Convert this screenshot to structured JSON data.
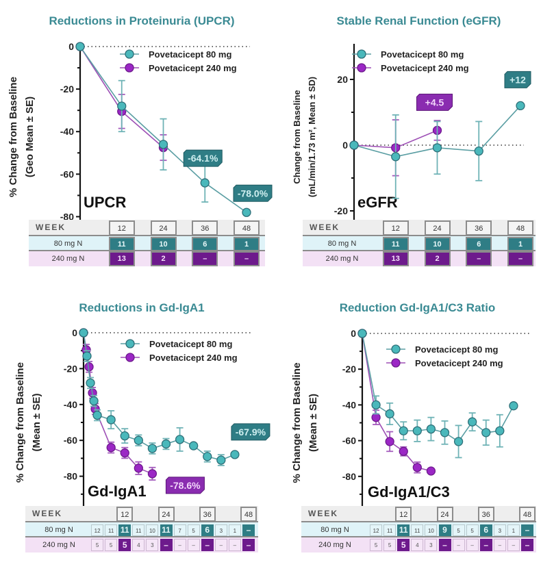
{
  "colors": {
    "teal": "#4ab8bb",
    "teal_dark": "#2e6f78",
    "teal_badge": "#2f7d85",
    "purple": "#9b27c5",
    "purple_dark": "#6d1a8c",
    "purple_badge": "#8a2cb0",
    "title": "#3a8a93",
    "row80_bg": "#dff3f8",
    "row240_bg": "#f3e1f5",
    "week_bg": "#eeeeee"
  },
  "chart_data": [
    {
      "id": "upcr",
      "type": "line",
      "title": "Reductions in Proteinuria (UPCR)",
      "panel_label": "UPCR",
      "ylabel_lines": [
        "% Change from Baseline",
        "(Geo Mean ± SE)"
      ],
      "ylim": [
        -85,
        0
      ],
      "yticks": [
        0,
        -20,
        -40,
        -60,
        -80
      ],
      "xlim": [
        0,
        48
      ],
      "x_minor_step": 4,
      "zero_line": true,
      "legend": [
        "Povetacicept 80 mg",
        "Povetacicept 240 mg"
      ],
      "legend_position": "top-right",
      "series": [
        {
          "name": "Povetacicept 80 mg",
          "color": "teal",
          "x": [
            0,
            12,
            24,
            36,
            48
          ],
          "y": [
            0,
            -28,
            -46,
            -64.1,
            -78.0
          ],
          "err": [
            0,
            12,
            12,
            9,
            0
          ]
        },
        {
          "name": "Povetacicept 240 mg",
          "color": "purple",
          "x": [
            0,
            12,
            24
          ],
          "y": [
            0,
            -30.5,
            -47.5
          ],
          "err": [
            0,
            8,
            6
          ]
        }
      ],
      "annotations": [
        {
          "text": "-64.1%",
          "x": 36,
          "y": -64.1,
          "color": "teal"
        },
        {
          "text": "-78.0%",
          "x": 48,
          "y": -78.0,
          "color": "teal"
        }
      ],
      "n_table": {
        "header": "WEEK",
        "weeks": [
          "12",
          "24",
          "36",
          "48"
        ],
        "row80_label": "80 mg N",
        "row240_label": "240 mg N",
        "row80": [
          "11",
          "10",
          "6",
          "1"
        ],
        "row240": [
          "13",
          "2",
          "–",
          "–"
        ]
      }
    },
    {
      "id": "egfr",
      "type": "line",
      "title": "Stable Renal Function (eGFR)",
      "panel_label": "eGFR",
      "ylabel_lines": [
        "Change from Baseline",
        "(mL/min/1.73 m², Mean ± SD)"
      ],
      "ylim": [
        -25,
        30
      ],
      "yticks": [
        20,
        0,
        -20
      ],
      "yminor": [
        10,
        -10
      ],
      "xlim": [
        0,
        48
      ],
      "x_minor_step": 4,
      "zero_line": true,
      "legend": [
        "Povetacicept 80 mg",
        "Povetacicept 240 mg"
      ],
      "legend_position": "top-left",
      "series": [
        {
          "name": "Povetacicept 80 mg",
          "color": "teal",
          "x": [
            0,
            12,
            24,
            36,
            48
          ],
          "y": [
            0,
            -3.5,
            -0.8,
            -1.8,
            12
          ],
          "err": [
            0,
            12.7,
            8,
            9,
            0
          ]
        },
        {
          "name": "Povetacicept 240 mg",
          "color": "purple",
          "x": [
            0,
            12,
            24
          ],
          "y": [
            0,
            -0.8,
            4.5
          ],
          "err": [
            0,
            8.5,
            3
          ]
        }
      ],
      "annotations": [
        {
          "text": "+4.5",
          "x": 24,
          "y": 4.5,
          "color": "purple"
        },
        {
          "text": "+12",
          "x": 48,
          "y": 12,
          "color": "teal"
        }
      ],
      "n_table": {
        "header": "WEEK",
        "weeks": [
          "12",
          "24",
          "36",
          "48"
        ],
        "row80_label": "80 mg N",
        "row240_label": "240 mg N",
        "row80": [
          "11",
          "10",
          "6",
          "1"
        ],
        "row240": [
          "13",
          "2",
          "–",
          "–"
        ]
      }
    },
    {
      "id": "gdiga1",
      "type": "line",
      "title": "Reductions in Gd-IgA1",
      "panel_label": "Gd-IgA1",
      "ylabel_lines": [
        "% Change from Baseline",
        "(Mean ± SE)"
      ],
      "ylim": [
        -100,
        0
      ],
      "yticks": [
        0,
        -20,
        -40,
        -60,
        -80,
        -100
      ],
      "xlim": [
        0,
        48
      ],
      "x_minor_step": 4,
      "zero_line": true,
      "legend": [
        "Povetacicept 80 mg",
        "Povetacicept 240 mg"
      ],
      "legend_position": "top-right",
      "series": [
        {
          "name": "Povetacicept 80 mg",
          "color": "teal",
          "x": [
            0,
            1,
            2,
            3,
            4,
            8,
            12,
            16,
            20,
            24,
            28,
            32,
            36,
            40,
            44
          ],
          "y": [
            0,
            -13,
            -28,
            -38,
            -46,
            -48.5,
            -57.5,
            -60,
            -64.5,
            -62,
            -59.5,
            -63,
            -69,
            -71,
            -67.9
          ],
          "err": [
            0,
            3,
            3,
            3,
            3,
            5,
            4,
            3,
            3,
            3,
            6.5,
            0,
            3,
            3,
            0
          ]
        },
        {
          "name": "Povetacicept 240 mg",
          "color": "purple",
          "x": [
            0,
            0.8,
            1.6,
            2.6,
            3.4,
            8,
            12,
            16,
            20
          ],
          "y": [
            0,
            -9.5,
            -19,
            -33.5,
            -42.5,
            -64,
            -67,
            -75.5,
            -78.6
          ],
          "err": [
            0,
            3,
            3,
            3,
            3,
            3,
            3,
            3.5,
            3.5
          ]
        }
      ],
      "annotations": [
        {
          "text": "-67.9%",
          "x": 44,
          "y": -67.9,
          "color": "teal"
        },
        {
          "text": "-78.6%",
          "x": 20,
          "y": -78.6,
          "color": "purple"
        }
      ],
      "n_table": {
        "header": "WEEK",
        "weeks": [
          "12",
          "24",
          "36",
          "48"
        ],
        "row80_label": "80 mg N",
        "row240_label": "240 mg N",
        "row80": [
          "12",
          "11",
          "11",
          "11",
          "10",
          "11",
          "7",
          "5",
          "6",
          "3",
          "1",
          "–"
        ],
        "row240": [
          "5",
          "5",
          "5",
          "4",
          "3",
          "–",
          "–",
          "–",
          "–",
          "–",
          "–",
          "–"
        ]
      }
    },
    {
      "id": "gdiga1c3",
      "type": "line",
      "title": "Reduction Gd-IgA1/C3 Ratio",
      "panel_label": "Gd-IgA1/C3",
      "ylabel_lines": [
        "% Change from Baseline",
        "(Mean ± SE)"
      ],
      "ylim": [
        -100,
        0
      ],
      "yticks": [
        0,
        -20,
        -40,
        -60,
        -80,
        -100
      ],
      "xlim": [
        0,
        48
      ],
      "x_minor_step": 4,
      "zero_line": true,
      "legend": [
        "Povetacicept 80 mg",
        "Povetacicept 240 mg"
      ],
      "legend_position": "top-right",
      "series": [
        {
          "name": "Povetacicept 80 mg",
          "color": "teal",
          "x": [
            0,
            4,
            8,
            12,
            16,
            20,
            24,
            28,
            32,
            36,
            40,
            44
          ],
          "y": [
            0,
            -40,
            -45,
            -54.5,
            -54.5,
            -53.5,
            -55.5,
            -60.5,
            -49.5,
            -55.5,
            -54.5,
            -40.5
          ],
          "err": [
            0,
            5,
            6,
            5,
            6,
            6.5,
            6.5,
            9,
            5,
            7,
            9,
            0
          ]
        },
        {
          "name": "Povetacicept 240 mg",
          "color": "purple",
          "x": [
            0,
            4,
            8,
            12,
            16,
            20
          ],
          "y": [
            0,
            -47,
            -60.5,
            -66,
            -75,
            -77
          ],
          "err": [
            0,
            4,
            5.5,
            2.5,
            3,
            0
          ]
        }
      ],
      "annotations": [],
      "n_table": {
        "header": "WEEK",
        "weeks": [
          "12",
          "24",
          "36",
          "48"
        ],
        "row80_label": "80 mg N",
        "row240_label": "240 mg N",
        "row80": [
          "12",
          "11",
          "11",
          "11",
          "10",
          "9",
          "5",
          "5",
          "6",
          "3",
          "1",
          "–"
        ],
        "row240": [
          "5",
          "5",
          "5",
          "4",
          "3",
          "–",
          "–",
          "–",
          "–",
          "–",
          "–",
          "–"
        ]
      }
    }
  ]
}
